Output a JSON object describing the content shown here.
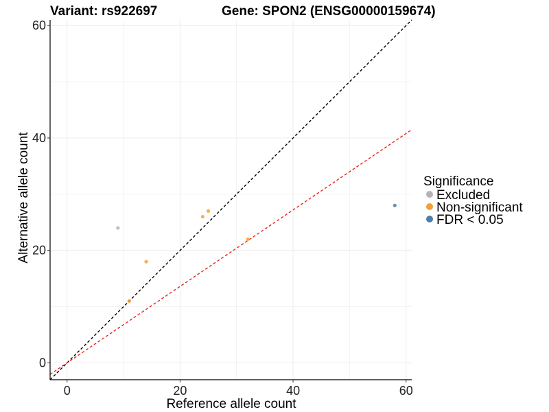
{
  "header": {
    "variant": "Variant: rs922697",
    "gene": "Gene: SPON2 (ENSG00000159674)"
  },
  "legend": {
    "title": "Significance",
    "items": [
      {
        "label": "Excluded",
        "color": "#b3b3b3"
      },
      {
        "label": "Non-significant",
        "color": "#f5a031"
      },
      {
        "label": "FDR < 0.05",
        "color": "#4a7fad"
      }
    ]
  },
  "chart_data": {
    "type": "scatter",
    "xlabel": "Reference allele count",
    "ylabel": "Alternative allele count",
    "xlim": [
      -3,
      61
    ],
    "ylim": [
      -3,
      61
    ],
    "xticks": [
      0,
      20,
      40,
      60
    ],
    "yticks": [
      0,
      20,
      40,
      60
    ],
    "grid": true,
    "legend_position": "right",
    "points": [
      {
        "x": 9,
        "y": 24,
        "group": "Excluded"
      },
      {
        "x": 11,
        "y": 11,
        "group": "Non-significant"
      },
      {
        "x": 14,
        "y": 18,
        "group": "Non-significant"
      },
      {
        "x": 24,
        "y": 26,
        "group": "Non-significant"
      },
      {
        "x": 25,
        "y": 27,
        "group": "Non-significant"
      },
      {
        "x": 32,
        "y": 22,
        "group": "Non-significant"
      },
      {
        "x": 58,
        "y": 28,
        "group": "FDR < 0.05"
      }
    ],
    "reference_lines": [
      {
        "intercept": 0,
        "slope": 1,
        "color": "#000000",
        "style": "dashed"
      },
      {
        "intercept": 0,
        "slope": 0.68,
        "color": "#e8241c",
        "style": "dashed"
      }
    ]
  }
}
